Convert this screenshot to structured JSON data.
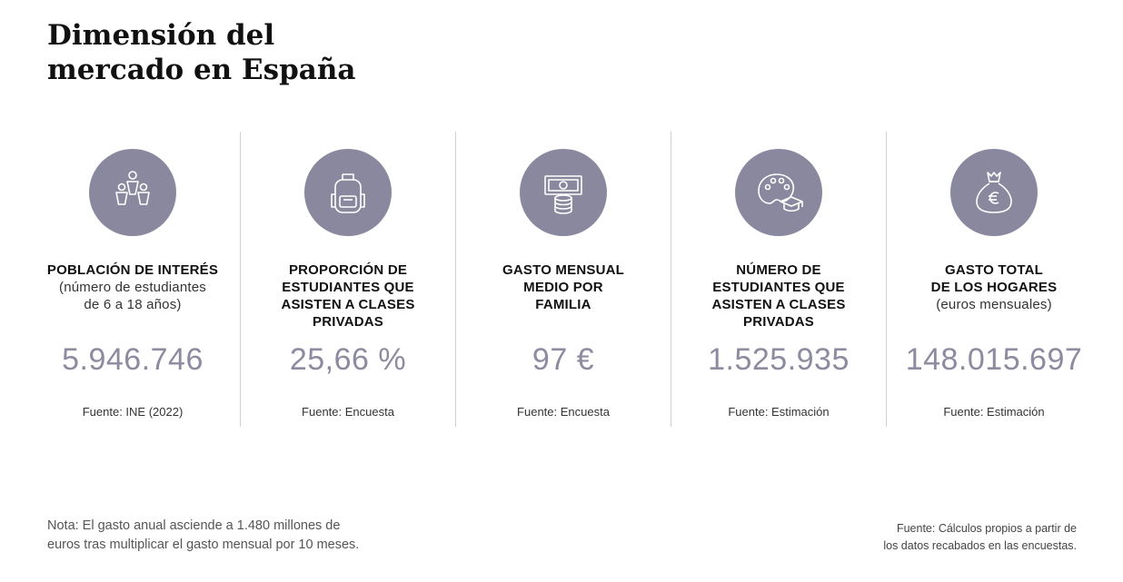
{
  "title": {
    "line1": "Dimensión del",
    "line2": "mercado en España"
  },
  "cards": [
    {
      "icon": "people-icon",
      "heading_lines": [
        "POBLACIÓN DE INTERÉS"
      ],
      "sub_lines": [
        "(número de estudiantes",
        "de 6 a 18 años)"
      ],
      "value": "5.946.746",
      "source": "Fuente: INE (2022)"
    },
    {
      "icon": "backpack-icon",
      "heading_lines": [
        "PROPORCIÓN DE",
        "ESTUDIANTES QUE",
        "ASISTEN A CLASES",
        "PRIVADAS"
      ],
      "sub_lines": [],
      "value": "25,66 %",
      "source": "Fuente: Encuesta"
    },
    {
      "icon": "money-icon",
      "heading_lines": [
        "GASTO MENSUAL",
        "MEDIO POR",
        "FAMILIA"
      ],
      "sub_lines": [],
      "value": "97 €",
      "source": "Fuente: Encuesta"
    },
    {
      "icon": "palette-graduation-icon",
      "heading_lines": [
        "NÚMERO DE",
        "ESTUDIANTES QUE",
        "ASISTEN A CLASES",
        "PRIVADAS"
      ],
      "sub_lines": [],
      "value": "1.525.935",
      "source": "Fuente: Estimación"
    },
    {
      "icon": "money-bag-euro-icon",
      "heading_lines": [
        "GASTO TOTAL",
        "DE LOS HOGARES"
      ],
      "sub_lines": [
        "(euros mensuales)"
      ],
      "value": "148.015.697",
      "source": "Fuente: Estimación"
    }
  ],
  "note": {
    "line1": "Nota: El gasto anual asciende a 1.480 millones de",
    "line2": "euros tras multiplicar el gasto mensual por 10 meses."
  },
  "footer_source": {
    "line1": "Fuente: Cálculos propios a partir de",
    "line2": "los datos recabados en las encuestas."
  },
  "colors": {
    "icon_circle": "#8a889f",
    "value": "#8c8ba0",
    "divider": "#cfcfd4"
  }
}
